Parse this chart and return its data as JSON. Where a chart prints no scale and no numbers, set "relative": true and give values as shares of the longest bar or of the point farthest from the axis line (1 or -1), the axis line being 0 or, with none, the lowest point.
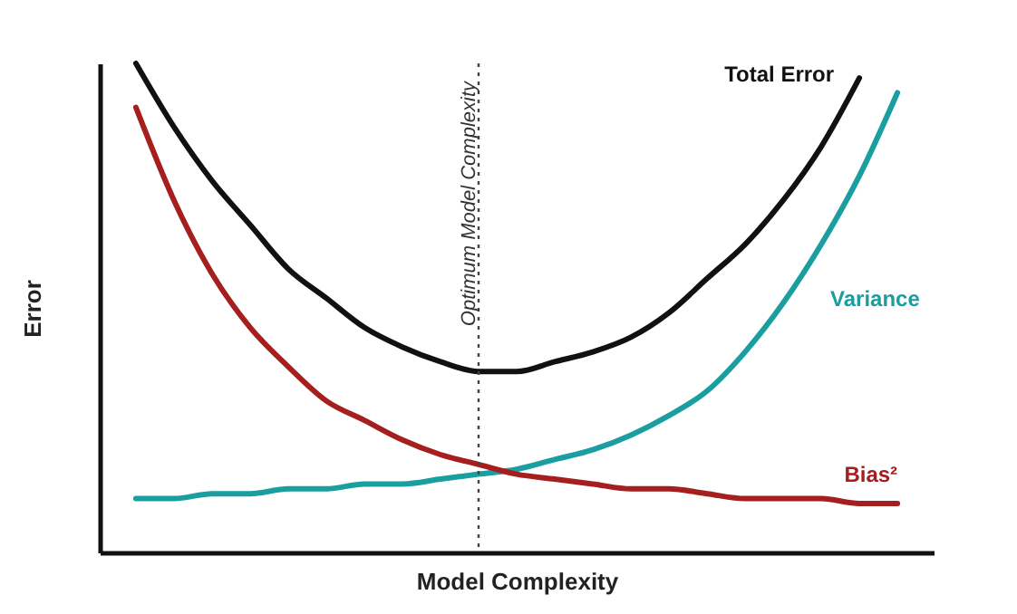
{
  "chart_data": {
    "type": "line",
    "relative": true,
    "xlabel": "Model Complexity",
    "ylabel": "Error",
    "categories": [
      null,
      null,
      null,
      null,
      null,
      null,
      null,
      null,
      null,
      null,
      null,
      null,
      null,
      null,
      null,
      null,
      null,
      null,
      null,
      null,
      null
    ],
    "series": [
      {
        "name": "Total Error",
        "color": "#111111",
        "values": [
          1,
          0.87,
          0.76,
          0.67,
          0.58,
          0.52,
          0.46,
          0.42,
          0.39,
          0.37,
          0.37,
          0.39,
          0.41,
          0.44,
          0.49,
          0.56,
          0.63,
          0.72,
          0.83,
          0.97,
          null
        ]
      },
      {
        "name": "Variance",
        "color": "#1a9ea0",
        "values": [
          0.11,
          0.11,
          0.12,
          0.12,
          0.13,
          0.13,
          0.14,
          0.14,
          0.15,
          0.16,
          0.17,
          0.19,
          0.21,
          0.24,
          0.28,
          0.33,
          0.41,
          0.51,
          0.63,
          0.77,
          0.94
        ]
      },
      {
        "name": "Bias²",
        "color": "#a51f1f",
        "values": [
          0.91,
          0.72,
          0.57,
          0.46,
          0.38,
          0.31,
          0.27,
          0.23,
          0.2,
          0.18,
          0.16,
          0.15,
          0.14,
          0.13,
          0.13,
          0.12,
          0.11,
          0.11,
          0.11,
          0.1,
          0.1
        ]
      }
    ],
    "ref_lines": [
      {
        "axis": "x",
        "label": "Optimum Model Complexity",
        "line_style": "dotted"
      }
    ],
    "tick_labels": false,
    "grid": false,
    "legend": false,
    "marker": "none",
    "line_style": "solid"
  }
}
